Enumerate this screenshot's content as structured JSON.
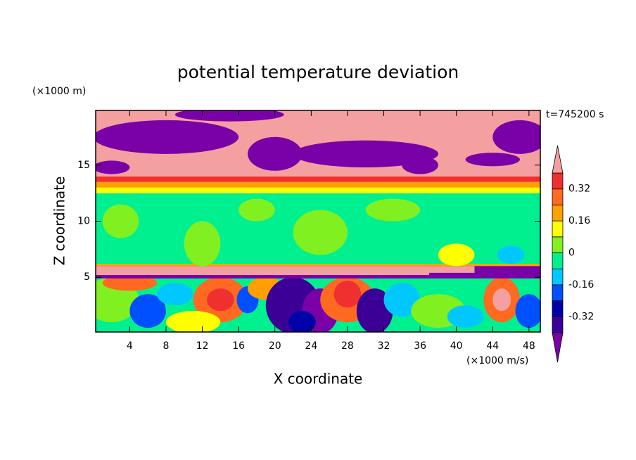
{
  "chart_data": {
    "type": "contour",
    "title": "potential temperature deviation",
    "y_unit": "(×1000 m)",
    "x_unit": "(×1000 m/s)",
    "time_label": "t=745200 s",
    "xlabel": "X coordinate",
    "ylabel": "Z coordinate",
    "xlim": [
      0.25,
      49.25
    ],
    "ylim": [
      0.125,
      19.875
    ],
    "xticks": [
      4,
      8,
      12,
      16,
      20,
      24,
      28,
      32,
      36,
      40,
      44,
      48
    ],
    "yticks": [
      5,
      10,
      15
    ],
    "levels": [
      -0.4,
      -0.32,
      -0.24,
      -0.16,
      -0.08,
      0,
      0.08,
      0.16,
      0.24,
      0.32,
      0.4
    ],
    "colors": [
      "#7a00a8",
      "#3c0096",
      "#0000a8",
      "#0050ff",
      "#00c8ff",
      "#00f090",
      "#80f020",
      "#ffff00",
      "#ffa000",
      "#ff6a20",
      "#f03030",
      "#f4a0a0"
    ],
    "colorbar_ticks": [
      0.32,
      0.16,
      0,
      -0.16,
      -0.32
    ]
  }
}
